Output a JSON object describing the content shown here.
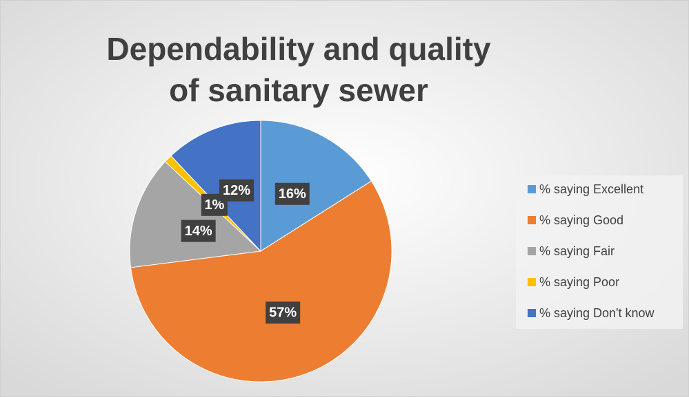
{
  "chart_data": {
    "type": "pie",
    "title": "Dependability and quality of sanitary sewer",
    "title_lines": [
      "Dependability and quality",
      "of sanitary sewer"
    ],
    "categories": [
      "% saying Excellent",
      "% saying Good",
      "% saying Fair",
      "% saying Poor",
      "% saying Don't know"
    ],
    "values": [
      16,
      57,
      14,
      1,
      12
    ],
    "value_labels": [
      "16%",
      "57%",
      "14%",
      "1%",
      "12%"
    ],
    "colors": [
      "#5b9bd5",
      "#ed7d31",
      "#a5a5a5",
      "#ffc000",
      "#4472c4"
    ],
    "legend": "right"
  }
}
